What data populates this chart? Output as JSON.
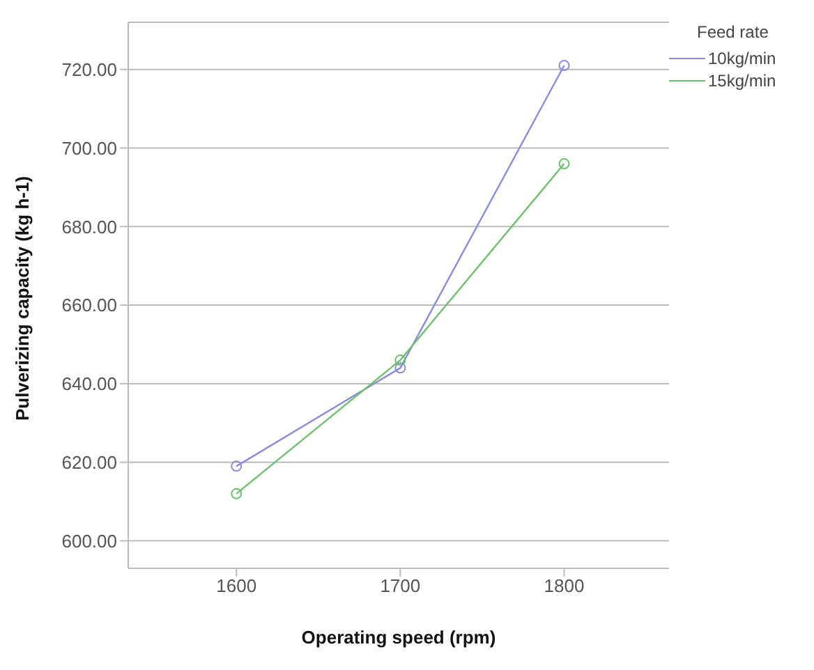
{
  "chart_data": {
    "type": "line",
    "xlabel": "Operating speed (rpm)",
    "ylabel": "Pulverizing capacity (kg h-1)",
    "legend_title": "Feed rate",
    "x": [
      1600,
      1700,
      1800
    ],
    "series": [
      {
        "name": "10kg/min",
        "color": "#8a8ae0",
        "values": [
          619,
          644,
          721
        ]
      },
      {
        "name": "15kg/min",
        "color": "#6cc06c",
        "values": [
          612,
          646,
          696
        ]
      }
    ],
    "xlim": [
      1534,
      1864
    ],
    "xticks": [
      1600,
      1700,
      1800
    ],
    "ylim": [
      593,
      732
    ],
    "yticks": [
      {
        "value": 600,
        "label": "600.00"
      },
      {
        "value": 620,
        "label": "620.00"
      },
      {
        "value": 640,
        "label": "640.00"
      },
      {
        "value": 660,
        "label": "660.00"
      },
      {
        "value": 680,
        "label": "680.00"
      },
      {
        "value": 700,
        "label": "700.00"
      },
      {
        "value": 720,
        "label": "720.00"
      }
    ],
    "grid": "y",
    "legend": "top right",
    "marker": "circle",
    "line_style": "solid"
  }
}
